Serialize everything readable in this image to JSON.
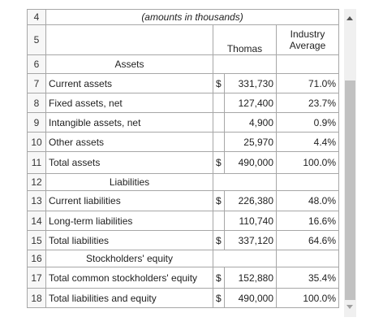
{
  "header": {
    "amounts_note": "(amounts in thousands)",
    "company": "Thomas",
    "industry_line1": "Industry",
    "industry_line2": "Average"
  },
  "rows": [
    {
      "num": "4"
    },
    {
      "num": "5"
    },
    {
      "num": "6",
      "section": "Assets"
    },
    {
      "num": "7",
      "label": "Current assets",
      "cur": "$",
      "value": "331,730",
      "pct": "71.0%"
    },
    {
      "num": "8",
      "label": "Fixed assets, net",
      "cur": "",
      "value": "127,400",
      "pct": "23.7%"
    },
    {
      "num": "9",
      "label": "Intangible assets, net",
      "cur": "",
      "value": "4,900",
      "pct": "0.9%"
    },
    {
      "num": "10",
      "label": "Other assets",
      "cur": "",
      "value": "25,970",
      "pct": "4.4%"
    },
    {
      "num": "11",
      "label": "Total assets",
      "cur": "$",
      "value": "490,000",
      "pct": "100.0%"
    },
    {
      "num": "12",
      "section": "Liabilities"
    },
    {
      "num": "13",
      "label": "Current liabilities",
      "cur": "$",
      "value": "226,380",
      "pct": "48.0%"
    },
    {
      "num": "14",
      "label": "Long-term liabilities",
      "cur": "",
      "value": "110,740",
      "pct": "16.6%"
    },
    {
      "num": "15",
      "label": "Total liabilities",
      "cur": "$",
      "value": "337,120",
      "pct": "64.6%"
    },
    {
      "num": "16",
      "section": "Stockholders' equity"
    },
    {
      "num": "17",
      "label": "Total common stockholders' equity",
      "cur": "$",
      "value": "152,880",
      "pct": "35.4%"
    },
    {
      "num": "18",
      "label": "Total liabilities and equity",
      "cur": "$",
      "value": "490,000",
      "pct": "100.0%"
    }
  ],
  "icons": {
    "scroll_up": "scroll-up-arrow-icon",
    "scroll_down": "scroll-down-arrow-icon"
  },
  "colors": {
    "grid": "#a7a7a7",
    "scroll_thumb": "#c1c1c1",
    "scroll_track": "#f0f0f0"
  }
}
